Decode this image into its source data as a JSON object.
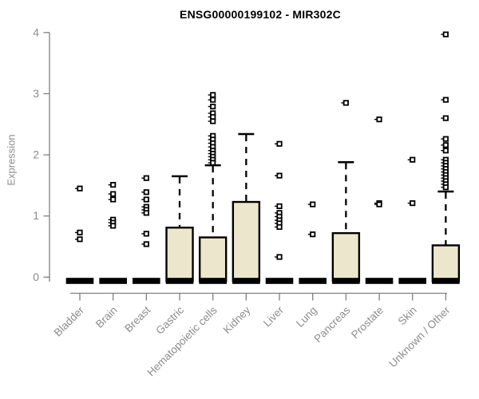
{
  "chart_data": {
    "type": "boxplot",
    "title": "ENSG00000199102 - MIR302C",
    "xlabel": "",
    "ylabel": "Expression",
    "ylim": [
      0,
      4
    ],
    "yticks": [
      0,
      1,
      2,
      3,
      4
    ],
    "grid": false,
    "legend": "none",
    "categories": [
      "Bladder",
      "Brain",
      "Breast",
      "Gastric",
      "Hematopoietic cells",
      "Kidney",
      "Liver",
      "Lung",
      "Pancreas",
      "Prostate",
      "Skin",
      "Unknown / Other"
    ],
    "series": [
      {
        "name": "Bladder",
        "median": 0,
        "q1": 0,
        "q3": 0,
        "whisker_low": 0,
        "whisker_high": 0,
        "outliers": [
          1.45,
          0.73,
          0.62
        ]
      },
      {
        "name": "Brain",
        "median": 0,
        "q1": 0,
        "q3": 0,
        "whisker_low": 0,
        "whisker_high": 0,
        "outliers": [
          1.51,
          1.36,
          1.27,
          0.94,
          0.89,
          0.84
        ]
      },
      {
        "name": "Breast",
        "median": 0,
        "q1": 0,
        "q3": 0,
        "whisker_low": 0,
        "whisker_high": 0,
        "outliers": [
          1.62,
          1.39,
          1.27,
          1.15,
          1.1,
          1.05,
          0.71,
          0.54
        ]
      },
      {
        "name": "Gastric",
        "median": 0,
        "q1": 0,
        "q3": 0.81,
        "whisker_low": 0,
        "whisker_high": 1.65,
        "outliers": []
      },
      {
        "name": "Hematopoietic cells",
        "median": 0,
        "q1": 0,
        "q3": 0.65,
        "whisker_low": 0,
        "whisker_high": 1.83,
        "outliers": [
          2.98,
          2.9,
          2.79,
          2.68,
          2.62,
          2.55,
          2.31,
          2.25,
          2.19,
          2.13,
          2.07,
          2.02,
          1.97,
          1.92,
          1.87
        ]
      },
      {
        "name": "Kidney",
        "median": 0,
        "q1": 0,
        "q3": 1.23,
        "whisker_low": 0,
        "whisker_high": 2.34,
        "outliers": []
      },
      {
        "name": "Liver",
        "median": 0,
        "q1": 0,
        "q3": 0,
        "whisker_low": 0,
        "whisker_high": 0,
        "outliers": [
          2.18,
          1.66,
          1.16,
          1.05,
          0.99,
          0.93,
          0.88,
          0.82,
          0.33
        ]
      },
      {
        "name": "Lung",
        "median": 0,
        "q1": 0,
        "q3": 0,
        "whisker_low": 0,
        "whisker_high": 0,
        "outliers": [
          1.19,
          0.7
        ]
      },
      {
        "name": "Pancreas",
        "median": 0,
        "q1": 0,
        "q3": 0.72,
        "whisker_low": 0,
        "whisker_high": 1.88,
        "outliers": [
          2.85
        ]
      },
      {
        "name": "Prostate",
        "median": 0,
        "q1": 0,
        "q3": 0,
        "whisker_low": 0,
        "whisker_high": 0,
        "outliers": [
          2.58,
          1.21,
          1.19
        ]
      },
      {
        "name": "Skin",
        "median": 0,
        "q1": 0,
        "q3": 0,
        "whisker_low": 0,
        "whisker_high": 0,
        "outliers": [
          1.92,
          1.21
        ]
      },
      {
        "name": "Unknown / Other",
        "median": 0,
        "q1": 0,
        "q3": 0.52,
        "whisker_low": 0,
        "whisker_high": 1.4,
        "outliers": [
          3.97,
          2.9,
          2.6,
          2.26,
          2.16,
          2.07,
          1.92,
          1.87,
          1.82,
          1.77,
          1.72,
          1.67,
          1.62,
          1.57,
          1.52,
          1.47
        ]
      }
    ]
  },
  "colors": {
    "background": "#ffffff",
    "box_fill": "#ece7cc",
    "box_stroke": "#000000",
    "median": "#000000",
    "whisker": "#000000",
    "outlier_stroke": "#000000",
    "outlier_fill": "#ffffff",
    "axis_line": "#7f7f7f",
    "tick_label": "#8c8c8c",
    "axis_title": "#8c8c8c",
    "title": "#000000"
  }
}
